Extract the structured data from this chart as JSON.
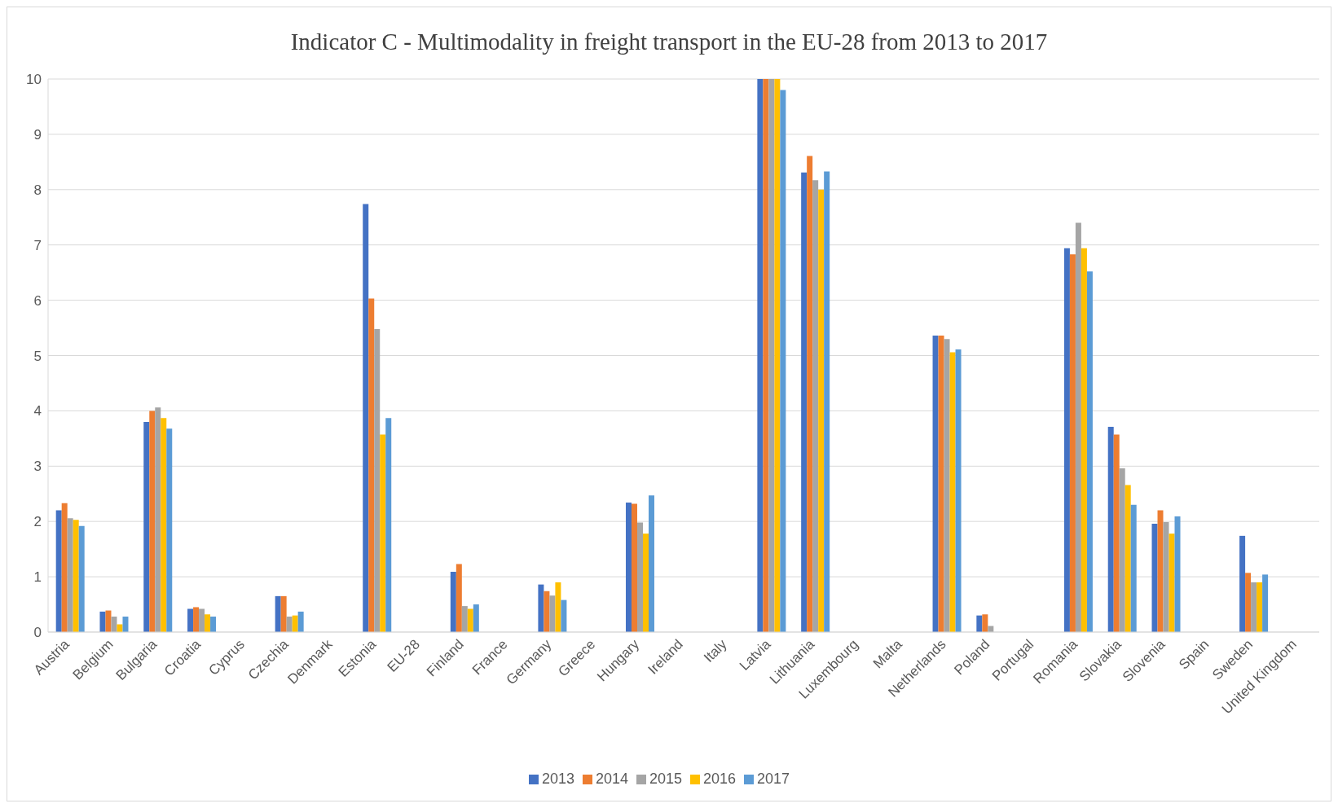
{
  "chart_data": {
    "type": "bar",
    "title": "Indicator  C - Multimodality  in freight  transport  in the EU-28  from 2013  to 2017",
    "categories": [
      "Austria",
      "Belgium",
      "Bulgaria",
      "Croatia",
      "Cyprus",
      "Czechia",
      "Denmark",
      "Estonia",
      "EU-28",
      "Finland",
      "France",
      "Germany",
      "Greece",
      "Hungary",
      "Ireland",
      "Italy",
      "Latvia",
      "Lithuania",
      "Luxembourg",
      "Malta",
      "Netherlands",
      "Poland",
      "Portugal",
      "Romania",
      "Slovakia",
      "Slovenia",
      "Spain",
      "Sweden",
      "United Kingdom"
    ],
    "series": [
      {
        "name": "2013",
        "color": "#4472c4",
        "values": [
          2.2,
          0.37,
          3.8,
          0.42,
          null,
          0.65,
          null,
          7.74,
          null,
          1.09,
          null,
          0.86,
          null,
          2.34,
          null,
          null,
          10,
          8.31,
          null,
          null,
          5.36,
          0.3,
          null,
          6.94,
          3.71,
          1.96,
          null,
          1.74,
          null
        ]
      },
      {
        "name": "2014",
        "color": "#ed7d31",
        "values": [
          2.33,
          0.39,
          4.0,
          0.45,
          null,
          0.65,
          null,
          6.03,
          null,
          1.23,
          null,
          0.74,
          null,
          2.32,
          null,
          null,
          10,
          8.61,
          null,
          null,
          5.36,
          0.32,
          null,
          6.83,
          3.57,
          2.2,
          null,
          1.07,
          null
        ]
      },
      {
        "name": "2015",
        "color": "#a5a5a5",
        "values": [
          2.06,
          0.28,
          4.06,
          0.42,
          null,
          0.28,
          null,
          5.48,
          null,
          0.47,
          null,
          0.66,
          null,
          1.98,
          null,
          null,
          10,
          8.17,
          null,
          null,
          5.3,
          0.11,
          null,
          7.4,
          2.96,
          1.99,
          null,
          0.9,
          null
        ]
      },
      {
        "name": "2016",
        "color": "#ffc000",
        "values": [
          2.03,
          0.14,
          3.87,
          0.32,
          null,
          0.3,
          null,
          3.57,
          null,
          0.42,
          null,
          0.9,
          null,
          1.78,
          null,
          null,
          10,
          8.0,
          null,
          null,
          5.06,
          null,
          null,
          6.94,
          2.66,
          1.78,
          null,
          0.9,
          null
        ]
      },
      {
        "name": "2017",
        "color": "#5b9bd5",
        "values": [
          1.92,
          0.28,
          3.68,
          0.28,
          null,
          0.37,
          null,
          3.87,
          null,
          0.5,
          null,
          0.58,
          null,
          2.47,
          null,
          null,
          9.8,
          8.33,
          null,
          null,
          5.11,
          null,
          null,
          6.52,
          2.3,
          2.09,
          null,
          1.04,
          null
        ]
      }
    ],
    "ylim": [
      0,
      10
    ],
    "yticks": [
      0,
      1,
      2,
      3,
      4,
      5,
      6,
      7,
      8,
      9,
      10
    ],
    "grid": "y",
    "legend": "bottom"
  }
}
